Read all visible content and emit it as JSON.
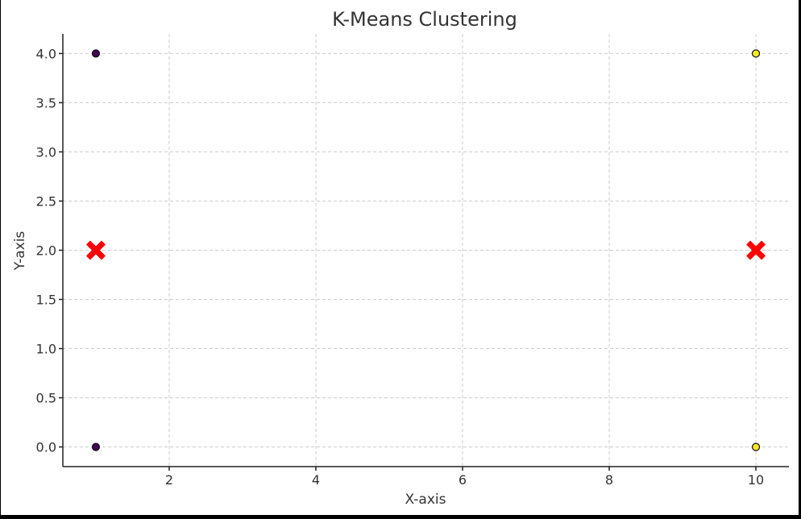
{
  "chart_data": {
    "type": "scatter",
    "title": "K-Means Clustering",
    "xlabel": "X-axis",
    "ylabel": "Y-axis",
    "xlim": [
      0.55,
      10.45
    ],
    "ylim": [
      -0.2,
      4.2
    ],
    "xticks": [
      2,
      4,
      6,
      8,
      10
    ],
    "yticks": [
      0.0,
      0.5,
      1.0,
      1.5,
      2.0,
      2.5,
      3.0,
      3.5,
      4.0
    ],
    "grid": true,
    "series": [
      {
        "points": [
          [
            1,
            4
          ],
          [
            1,
            0
          ]
        ],
        "color": "#440154",
        "marker": "circle"
      },
      {
        "points": [
          [
            10,
            4
          ],
          [
            10,
            0
          ]
        ],
        "color": "#fde725",
        "marker": "circle"
      },
      {
        "points": [
          [
            1,
            2
          ],
          [
            10,
            2
          ]
        ],
        "color": "#ff0000",
        "marker": "x"
      }
    ]
  }
}
